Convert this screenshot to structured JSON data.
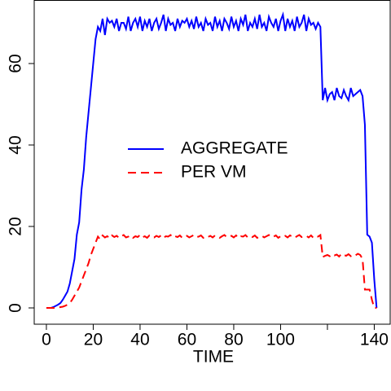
{
  "chart_data": {
    "type": "line",
    "xlabel": "TIME",
    "x": [
      0,
      1,
      2,
      3,
      4,
      5,
      6,
      7,
      8,
      9,
      10,
      11,
      12,
      13,
      14,
      15,
      16,
      17,
      18,
      19,
      20,
      21,
      22,
      23,
      24,
      25,
      26,
      27,
      28,
      29,
      30,
      31,
      32,
      33,
      34,
      35,
      36,
      37,
      38,
      39,
      40,
      41,
      42,
      43,
      44,
      45,
      46,
      47,
      48,
      49,
      50,
      51,
      52,
      53,
      54,
      55,
      56,
      57,
      58,
      59,
      60,
      61,
      62,
      63,
      64,
      65,
      66,
      67,
      68,
      69,
      70,
      71,
      72,
      73,
      74,
      75,
      76,
      77,
      78,
      79,
      80,
      81,
      82,
      83,
      84,
      85,
      86,
      87,
      88,
      89,
      90,
      91,
      92,
      93,
      94,
      95,
      96,
      97,
      98,
      99,
      100,
      101,
      102,
      103,
      104,
      105,
      106,
      107,
      108,
      109,
      110,
      111,
      112,
      113,
      114,
      115,
      116,
      117,
      118,
      119,
      120,
      121,
      122,
      123,
      124,
      125,
      126,
      127,
      128,
      129,
      130,
      131,
      132,
      133,
      134,
      135,
      136,
      137,
      138,
      139,
      140,
      141
    ],
    "series": [
      {
        "name": "AGGREGATE",
        "color": "#0000ff",
        "dash": "solid",
        "values": [
          0,
          0,
          0,
          0.2,
          0.5,
          0.8,
          1.2,
          2,
          3,
          4,
          6,
          9,
          12,
          18,
          21,
          29,
          34,
          42,
          48,
          54,
          60,
          66,
          69,
          68,
          71,
          67,
          71,
          70,
          70.5,
          69,
          71,
          68,
          70,
          70,
          68.5,
          71.5,
          68,
          70,
          71,
          69,
          71.5,
          68,
          70.5,
          69,
          71,
          68,
          70,
          71,
          68.5,
          70,
          72,
          68,
          71,
          69.5,
          70,
          68,
          71,
          69,
          70.5,
          70,
          71,
          69,
          70.5,
          68.5,
          71.5,
          69,
          70,
          68,
          71,
          69.5,
          70,
          68,
          71.5,
          69,
          70.5,
          68,
          71,
          70,
          68.5,
          71.5,
          69,
          70.5,
          68,
          71,
          69.5,
          72,
          68,
          70,
          69,
          71,
          68.5,
          72,
          69,
          70,
          68,
          71.5,
          70,
          69,
          71,
          68,
          70.5,
          72,
          68,
          71,
          69,
          70.5,
          68,
          71.5,
          69,
          70,
          72,
          68,
          71,
          69.5,
          70,
          68.5,
          70,
          69,
          51,
          54,
          51,
          52.5,
          53,
          51,
          54,
          52,
          51.5,
          53.5,
          52,
          51,
          54,
          52,
          52.5,
          53,
          53.5,
          52,
          45,
          18,
          17.5,
          16,
          7,
          0
        ]
      },
      {
        "name": "PER VM",
        "color": "#ff0000",
        "dash": "dashed",
        "values": [
          0,
          0,
          0,
          0,
          0,
          0.1,
          0.2,
          0.3,
          0.5,
          0.8,
          1.2,
          2,
          3,
          4,
          5,
          6.5,
          8,
          9.5,
          11,
          13,
          14.5,
          16,
          17.5,
          16.8,
          17.8,
          17.3,
          17.6,
          17.1,
          17.8,
          17.4,
          17.7,
          17.2,
          17.6,
          17.9,
          17.3,
          17.5,
          17.8,
          17.2,
          17.6,
          17.4,
          17.9,
          17.3,
          17.6,
          17.2,
          17.8,
          17.5,
          17.3,
          17.7,
          17.4,
          17.8,
          17.2,
          17.6,
          17.5,
          17.9,
          17.3,
          17.6,
          17.4,
          17.8,
          17.2,
          17.5,
          17.7,
          17.3,
          17.6,
          17.9,
          17.4,
          17.5,
          17.8,
          17.2,
          17.6,
          17.4,
          17.7,
          17.3,
          17.8,
          17.5,
          17.2,
          17.6,
          17.9,
          17.4,
          17.5,
          17.7,
          17.3,
          17.8,
          17.2,
          17.6,
          17.5,
          17.9,
          17.3,
          17.6,
          17.4,
          17.8,
          17.2,
          17.5,
          17.7,
          17.3,
          17.6,
          17.9,
          17.4,
          17.5,
          17.8,
          17.2,
          17.6,
          17.4,
          17.7,
          17.3,
          17.8,
          17.5,
          17.2,
          17.6,
          17.9,
          17.4,
          17.5,
          17.7,
          17.3,
          17.8,
          17.2,
          17.6,
          17.5,
          17.9,
          12.5,
          12.8,
          13,
          12.7,
          13.2,
          12.9,
          13.1,
          12.6,
          13.3,
          13,
          12.8,
          13.2,
          12.7,
          13.1,
          12.9,
          13.3,
          13,
          12,
          4.5,
          4.5,
          4.5,
          2,
          0,
          0
        ]
      }
    ],
    "xlim": [
      -5.2,
      146.8
    ],
    "ylim": [
      -4,
      75.6
    ],
    "xticks": [
      0,
      20,
      40,
      60,
      80,
      100,
      {
        "value": 120,
        "label": null
      },
      140
    ],
    "yticks": [
      0,
      20,
      40,
      60
    ],
    "legend": "center"
  }
}
